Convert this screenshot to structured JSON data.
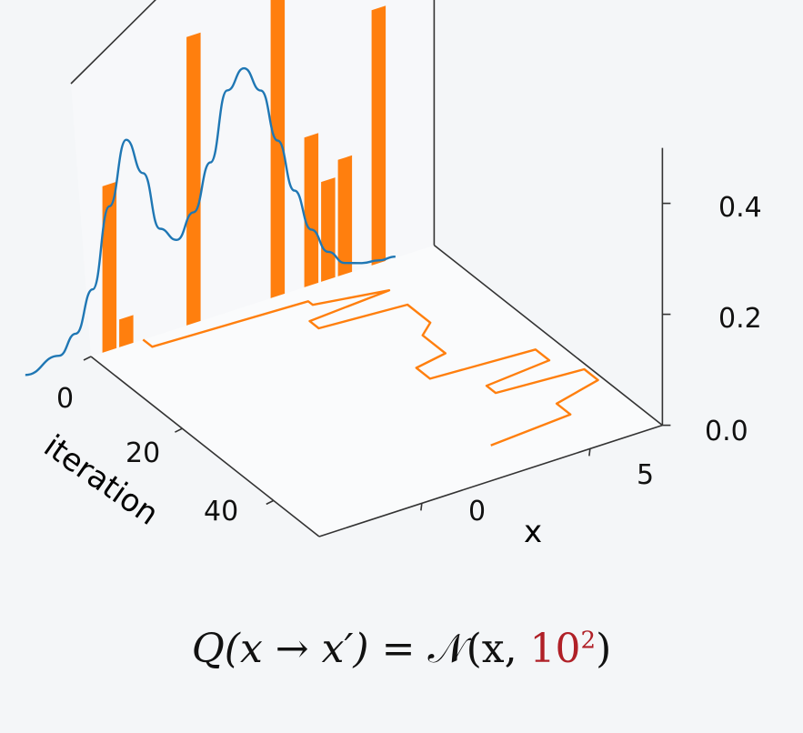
{
  "chart_data": {
    "type": "bar",
    "subtype": "3d-histogram-with-trace",
    "xlabel": "x",
    "ylabel": "iteration",
    "x_ticks": [
      "0",
      "5"
    ],
    "iteration_ticks": [
      "0",
      "20",
      "40"
    ],
    "z_ticks": [
      "0.0",
      "0.2",
      "0.4"
    ],
    "zlim": [
      0,
      0.55
    ],
    "grid": false,
    "histogram": {
      "x": [
        -2.5,
        -2.0,
        0.0,
        2.5,
        3.5,
        4.0,
        4.5,
        5.5
      ],
      "values": [
        0.3,
        0.05,
        0.52,
        0.74,
        0.27,
        0.18,
        0.21,
        0.46
      ]
    },
    "density_curve": {
      "x": [
        -5,
        -4,
        -3.5,
        -3,
        -2.5,
        -2.0,
        -1.5,
        -1.0,
        -0.5,
        0.0,
        0.5,
        1.0,
        1.5,
        2.0,
        2.5,
        3.0,
        3.5,
        4.0,
        4.5,
        5.0,
        5.5,
        6.0
      ],
      "values": [
        0.005,
        0.02,
        0.05,
        0.12,
        0.26,
        0.37,
        0.3,
        0.19,
        0.16,
        0.2,
        0.28,
        0.4,
        0.43,
        0.38,
        0.28,
        0.18,
        0.1,
        0.05,
        0.02,
        0.01,
        0.005,
        0.002
      ]
    },
    "trace": {
      "iteration": [
        0,
        2,
        3,
        4,
        6,
        7,
        9,
        10,
        15,
        17,
        22,
        23,
        26,
        27,
        30,
        31,
        33,
        34,
        37,
        39,
        42,
        43
      ],
      "x": [
        -1.5,
        -1.5,
        3.0,
        3.0,
        5.0,
        2.5,
        2.5,
        5.0,
        5.0,
        4.5,
        4.5,
        3.5,
        3.5,
        6.5,
        6.5,
        4.5,
        4.5,
        7.0,
        7.0,
        5.5,
        5.5,
        3.0
      ]
    },
    "colors": {
      "bars": "#ff7f0e",
      "trace": "#ff7f0e",
      "curve": "#1f77b4",
      "axes": "#333333"
    }
  },
  "formula": {
    "lhs": "Q(x → x′) = ",
    "script_n": "𝒩",
    "args_open": "(x, ",
    "variance_base": "10",
    "variance_exp": "2",
    "args_close": ")",
    "variance_color": "#b02027"
  }
}
